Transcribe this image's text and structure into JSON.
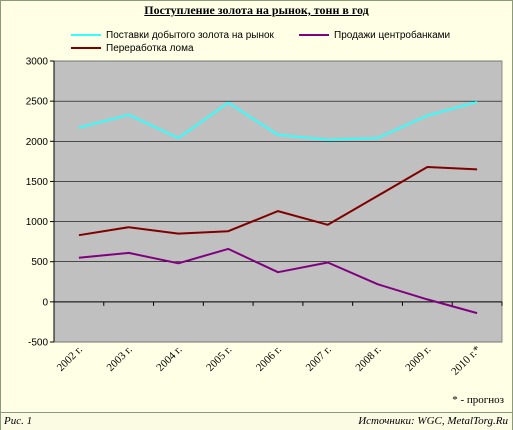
{
  "title": "Поступление золота на рынок, тонн в год",
  "footnote": "* - прогноз",
  "figure_label": "Рис. 1",
  "sources": "Источники: WGC, MetalTorg.Ru",
  "colors": {
    "plot_bg": "#c0c0c0",
    "page_bg": "#ffffe6",
    "mining": "#33ffff",
    "central_banks": "#800080",
    "scrap": "#800000"
  },
  "chart_data": {
    "type": "line",
    "categories": [
      "2002 г.",
      "2003 г.",
      "2004 г.",
      "2005 г.",
      "2006 г.",
      "2007 г.",
      "2008 г.",
      "2009 г.",
      "2010 г.*"
    ],
    "series": [
      {
        "name": "Поставки добытого золота на рынок",
        "color": "#33ffff",
        "values": [
          2170,
          2330,
          2040,
          2480,
          2080,
          2020,
          2040,
          2320,
          2490
        ]
      },
      {
        "name": "Продажи центробанками",
        "color": "#800080",
        "values": [
          550,
          610,
          480,
          660,
          370,
          490,
          220,
          30,
          -140
        ]
      },
      {
        "name": "Переработка лома",
        "color": "#800000",
        "values": [
          830,
          930,
          850,
          880,
          1130,
          960,
          1320,
          1680,
          1650
        ]
      }
    ],
    "yticks": [
      3000,
      2500,
      2000,
      1500,
      1000,
      500,
      0,
      -500
    ],
    "ylim": [
      -500,
      3000
    ],
    "grid": true,
    "legend_position": "top"
  }
}
